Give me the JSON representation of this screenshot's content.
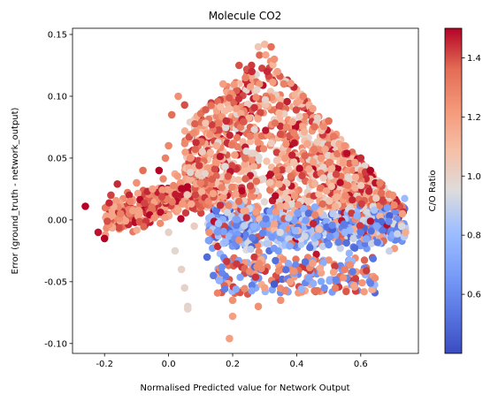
{
  "chart_data": {
    "type": "scatter",
    "title": "Molecule CO2",
    "xlabel": "Normalised Predicted value for Network Output",
    "ylabel": "Error (ground_truth - network_output)",
    "xlim": [
      -0.3,
      0.78
    ],
    "ylim": [
      -0.108,
      0.155
    ],
    "xticks": [
      "-0.2",
      "0.0",
      "0.2",
      "0.4",
      "0.6"
    ],
    "xtick_values": [
      -0.2,
      0.0,
      0.2,
      0.4,
      0.6
    ],
    "yticks": [
      "-0.10",
      "-0.05",
      "0.00",
      "0.05",
      "0.10",
      "0.15"
    ],
    "ytick_values": [
      -0.1,
      -0.05,
      0.0,
      0.05,
      0.1,
      0.15
    ],
    "grid": false,
    "colorbar": {
      "label": "C/O Ratio",
      "colormap": "coolwarm",
      "range": [
        0.4,
        1.5
      ],
      "ticks": [
        "0.6",
        "0.8",
        "1.0",
        "1.2",
        "1.4"
      ],
      "tick_values": [
        0.6,
        0.8,
        1.0,
        1.2,
        1.4
      ]
    },
    "points": [
      {
        "x": -0.26,
        "y": 0.011,
        "c": 1.5
      },
      {
        "x": -0.22,
        "y": -0.01,
        "c": 1.48
      },
      {
        "x": -0.2,
        "y": -0.015,
        "c": 1.5
      },
      {
        "x": -0.18,
        "y": 0.02,
        "c": 1.42
      },
      {
        "x": -0.16,
        "y": 0.029,
        "c": 1.45
      },
      {
        "x": -0.15,
        "y": 0.005,
        "c": 1.3
      },
      {
        "x": -0.12,
        "y": 0.015,
        "c": 1.28
      },
      {
        "x": -0.1,
        "y": 0.03,
        "c": 1.25
      },
      {
        "x": -0.08,
        "y": 0.04,
        "c": 1.35
      },
      {
        "x": -0.05,
        "y": 0.025,
        "c": 1.2
      },
      {
        "x": -0.03,
        "y": 0.04,
        "c": 1.5
      },
      {
        "x": -0.01,
        "y": 0.05,
        "c": 1.3
      },
      {
        "x": 0.0,
        "y": 0.06,
        "c": 1.28
      },
      {
        "x": 0.01,
        "y": 0.085,
        "c": 1.35
      },
      {
        "x": 0.03,
        "y": 0.1,
        "c": 1.25
      },
      {
        "x": 0.05,
        "y": 0.093,
        "c": 1.4
      },
      {
        "x": 0.0,
        "y": -0.01,
        "c": 1.0
      },
      {
        "x": 0.02,
        "y": -0.025,
        "c": 0.98
      },
      {
        "x": 0.04,
        "y": -0.04,
        "c": 1.0
      },
      {
        "x": 0.05,
        "y": -0.055,
        "c": 1.0
      },
      {
        "x": 0.06,
        "y": -0.07,
        "c": 1.0
      },
      {
        "x": 0.06,
        "y": -0.072,
        "c": 0.99
      },
      {
        "x": 0.08,
        "y": -0.005,
        "c": 1.02
      },
      {
        "x": 0.1,
        "y": 0.03,
        "c": 1.3
      },
      {
        "x": 0.12,
        "y": -0.03,
        "c": 0.5
      },
      {
        "x": 0.14,
        "y": -0.045,
        "c": 0.55
      },
      {
        "x": 0.15,
        "y": 0.06,
        "c": 1.15
      },
      {
        "x": 0.17,
        "y": 0.11,
        "c": 1.2
      },
      {
        "x": 0.18,
        "y": 0.08,
        "c": 1.45
      },
      {
        "x": 0.19,
        "y": 0.09,
        "c": 1.1
      },
      {
        "x": 0.2,
        "y": -0.065,
        "c": 1.25
      },
      {
        "x": 0.2,
        "y": -0.078,
        "c": 1.2
      },
      {
        "x": 0.19,
        "y": -0.096,
        "c": 1.2
      },
      {
        "x": 0.22,
        "y": 0.125,
        "c": 1.4
      },
      {
        "x": 0.24,
        "y": 0.115,
        "c": 1.3
      },
      {
        "x": 0.26,
        "y": 0.12,
        "c": 1.45
      },
      {
        "x": 0.28,
        "y": 0.14,
        "c": 1.05
      },
      {
        "x": 0.3,
        "y": 0.142,
        "c": 1.1
      },
      {
        "x": 0.32,
        "y": 0.14,
        "c": 1.35
      },
      {
        "x": 0.33,
        "y": 0.13,
        "c": 1.25
      },
      {
        "x": 0.34,
        "y": 0.12,
        "c": 1.2
      },
      {
        "x": 0.36,
        "y": 0.11,
        "c": 1.3
      },
      {
        "x": 0.28,
        "y": -0.07,
        "c": 1.25
      },
      {
        "x": 0.3,
        "y": -0.055,
        "c": 1.2
      },
      {
        "x": 0.33,
        "y": -0.052,
        "c": 0.45
      },
      {
        "x": 0.35,
        "y": -0.065,
        "c": 1.25
      },
      {
        "x": 0.38,
        "y": -0.05,
        "c": 1.2
      },
      {
        "x": 0.42,
        "y": 0.1,
        "c": 1.3
      },
      {
        "x": 0.45,
        "y": 0.09,
        "c": 1.2
      },
      {
        "x": 0.5,
        "y": 0.08,
        "c": 1.35
      },
      {
        "x": 0.55,
        "y": 0.06,
        "c": 1.25
      },
      {
        "x": 0.6,
        "y": 0.05,
        "c": 1.45
      },
      {
        "x": 0.63,
        "y": 0.04,
        "c": 1.5
      },
      {
        "x": 0.66,
        "y": 0.03,
        "c": 1.3
      },
      {
        "x": 0.7,
        "y": 0.02,
        "c": 1.25
      },
      {
        "x": 0.73,
        "y": 0.005,
        "c": 1.2
      },
      {
        "x": 0.74,
        "y": -0.01,
        "c": 1.15
      },
      {
        "x": 0.5,
        "y": -0.02,
        "c": 0.6
      },
      {
        "x": 0.6,
        "y": -0.01,
        "c": 0.55
      },
      {
        "x": 0.65,
        "y": -0.005,
        "c": 0.7
      },
      {
        "x": 0.55,
        "y": -0.04,
        "c": 1.3
      },
      {
        "x": 0.45,
        "y": -0.035,
        "c": 1.2
      }
    ]
  }
}
